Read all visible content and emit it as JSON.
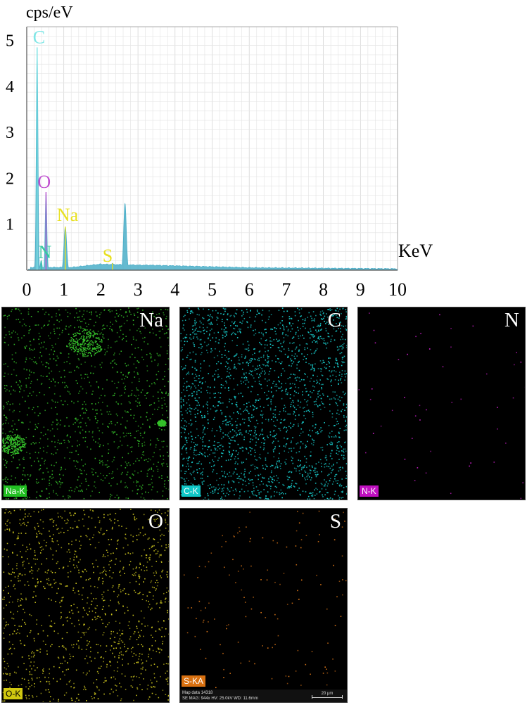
{
  "chart_data": {
    "type": "line",
    "title": "",
    "ylabel": "cps/eV",
    "xlabel": "KeV",
    "xlim": [
      0,
      10
    ],
    "ylim": [
      0,
      5.3
    ],
    "x_ticks": [
      "0",
      "1",
      "2",
      "3",
      "4",
      "5",
      "6",
      "7",
      "8",
      "9",
      "10"
    ],
    "y_ticks": [
      "1",
      "2",
      "3",
      "4",
      "5"
    ],
    "grid": true,
    "spectrum_color": "#4aaec8",
    "peaks": [
      {
        "energy": 0.28,
        "value": 4.85,
        "label": "C",
        "color": "#7fe6e6"
      },
      {
        "energy": 0.39,
        "value": 0.2,
        "label": "N",
        "color": "#34c9a0"
      },
      {
        "energy": 0.52,
        "value": 1.7,
        "label": "O",
        "color": "#c050d0"
      },
      {
        "energy": 1.04,
        "value": 0.95,
        "label": "Na",
        "color": "#e8e020"
      },
      {
        "energy": 2.31,
        "value": 0.15,
        "label": "S",
        "color": "#e8e020"
      },
      {
        "energy": 2.65,
        "value": 1.45,
        "label": "",
        "color": "#4aaec8"
      }
    ]
  },
  "maps": [
    {
      "element": "Na",
      "tag": "Na-K",
      "color": "#35c02a",
      "tag_bg": "#22c022",
      "density": 0.55
    },
    {
      "element": "C",
      "tag": "C-K",
      "color": "#19d6d6",
      "tag_bg": "#10c8c8",
      "density": 1.0
    },
    {
      "element": "N",
      "tag": "N-K",
      "color": "#d020d0",
      "tag_bg": "#c010c0",
      "density": 0.02
    },
    {
      "element": "O",
      "tag": "O-K",
      "color": "#d8d020",
      "tag_bg": "#d0c810",
      "density": 0.5
    },
    {
      "element": "S",
      "tag": "S-KA",
      "color": "#e07818",
      "tag_bg": "#d87010",
      "density": 0.06
    }
  ],
  "micrograph": {
    "map_data": "Map data 14318",
    "info": "SE  MAG: 944x  HV: 25.0kV  WD: 11.6mm",
    "scale": "20 μm"
  }
}
